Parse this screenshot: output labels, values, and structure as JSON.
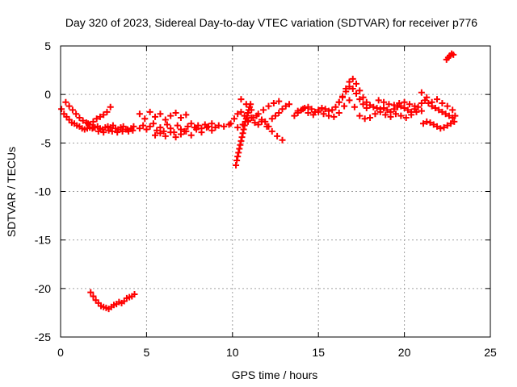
{
  "chart_data": {
    "type": "scatter",
    "title": "Day 320 of 2023, Sidereal Day-to-day VTEC variation (SDTVAR) for receiver p776",
    "xlabel": "GPS time / hours",
    "ylabel": "SDTVAR / TECUs",
    "xlim": [
      0,
      25
    ],
    "ylim": [
      -25,
      5
    ],
    "x_ticks": [
      0,
      5,
      10,
      15,
      20,
      25
    ],
    "y_ticks": [
      5,
      0,
      -5,
      -10,
      -15,
      -20,
      -25
    ],
    "x_tick_labels": [
      "0",
      "5",
      "10",
      "15",
      "20",
      "25"
    ],
    "y_tick_labels": [
      "5",
      "0",
      "-5",
      "-10",
      "-15",
      "-20",
      "-25"
    ],
    "grid": true,
    "marker": "+",
    "series": [
      {
        "name": "SDTVAR",
        "color": "#ff0000",
        "x": [
          0.05,
          0.2,
          0.35,
          0.5,
          0.65,
          0.8,
          0.95,
          1.1,
          1.25,
          1.4,
          1.55,
          1.7,
          1.85,
          2.0,
          2.15,
          2.3,
          2.45,
          2.6,
          2.75,
          2.9,
          3.05,
          3.2,
          3.35,
          3.5,
          3.65,
          3.8,
          3.95,
          4.1,
          4.25,
          0.3,
          0.5,
          0.7,
          0.9,
          1.1,
          1.3,
          1.5,
          1.7,
          1.9,
          2.1,
          2.3,
          2.5,
          2.7,
          2.9,
          1.6,
          1.9,
          2.2,
          2.5,
          2.8,
          3.0,
          3.3,
          3.6,
          3.9,
          4.2,
          4.6,
          4.8,
          5.0,
          5.2,
          5.4,
          5.6,
          5.8,
          6.0,
          6.2,
          6.4,
          6.6,
          6.8,
          7.0,
          7.2,
          7.4,
          7.6,
          7.8,
          8.0,
          8.2,
          8.4,
          8.6,
          8.8,
          9.0,
          9.2,
          9.5,
          9.8,
          4.6,
          4.9,
          5.2,
          5.5,
          5.8,
          6.1,
          6.4,
          6.7,
          7.0,
          7.3,
          5.5,
          5.8,
          6.1,
          6.4,
          6.7,
          7.0,
          7.3,
          7.6,
          7.9,
          8.2,
          8.5,
          8.8,
          9.9,
          10.1,
          10.3,
          10.5,
          10.7,
          10.9,
          11.1,
          11.3,
          11.5,
          11.7,
          11.9,
          12.1,
          12.3,
          12.5,
          12.7,
          12.9,
          13.1,
          13.3,
          10.2,
          10.25,
          10.3,
          10.35,
          10.4,
          10.45,
          10.5,
          10.55,
          10.6,
          10.65,
          10.7,
          10.75,
          10.8,
          10.85,
          10.9,
          10.95,
          11.0,
          11.05,
          10.5,
          10.8,
          11.1,
          11.4,
          11.7,
          12.0,
          12.3,
          12.6,
          12.9,
          10.3,
          10.6,
          10.9,
          11.2,
          11.5,
          11.8,
          12.1,
          12.4,
          12.7,
          13.6,
          13.8,
          14.0,
          14.2,
          14.4,
          14.6,
          14.8,
          15.0,
          15.2,
          15.4,
          15.6,
          15.8,
          16.0,
          16.2,
          16.4,
          16.6,
          16.8,
          17.0,
          17.2,
          17.4,
          17.6,
          17.8,
          18.0,
          18.2,
          18.4,
          18.6,
          18.8,
          19.0,
          19.2,
          19.4,
          19.6,
          19.8,
          20.0,
          20.2,
          20.4,
          20.6,
          20.8,
          21.0,
          21.2,
          21.4,
          21.6,
          21.8,
          22.0,
          22.2,
          22.4,
          22.6,
          22.8,
          22.95,
          13.8,
          14.1,
          14.4,
          14.7,
          15.0,
          15.3,
          15.6,
          15.9,
          16.2,
          16.5,
          16.8,
          17.1,
          17.4,
          17.7,
          18.0,
          18.3,
          18.6,
          18.9,
          19.2,
          19.5,
          19.8,
          20.1,
          20.4,
          20.7,
          21.0,
          16.2,
          16.4,
          16.6,
          16.8,
          17.0,
          17.2,
          17.4,
          17.6,
          17.8,
          18.5,
          18.8,
          19.1,
          19.4,
          19.7,
          20.0,
          20.3,
          20.6,
          21.1,
          21.3,
          21.5,
          21.7,
          21.9,
          22.1,
          22.3,
          22.5,
          22.7,
          22.9,
          21.0,
          21.3,
          21.6,
          21.9,
          22.2,
          22.5,
          22.8,
          22.45,
          22.55,
          22.65,
          22.75,
          22.85,
          1.75,
          1.9,
          2.05,
          2.2,
          2.35,
          2.5,
          2.65,
          2.8,
          2.95,
          3.1,
          3.25,
          3.4,
          3.55,
          3.7,
          3.85,
          4.0,
          4.15,
          4.3
        ],
        "y": [
          -1.5,
          -2.0,
          -2.3,
          -2.6,
          -2.9,
          -3.0,
          -3.2,
          -3.3,
          -3.5,
          -3.6,
          -3.5,
          -3.4,
          -3.5,
          -3.4,
          -3.3,
          -3.5,
          -3.6,
          -3.4,
          -3.3,
          -3.4,
          -3.2,
          -3.5,
          -3.6,
          -3.4,
          -3.3,
          -3.6,
          -3.8,
          -3.5,
          -3.3,
          -0.8,
          -1.2,
          -1.6,
          -2.0,
          -2.4,
          -2.7,
          -2.9,
          -3.1,
          -2.8,
          -2.5,
          -2.3,
          -2.1,
          -1.8,
          -1.3,
          -3.0,
          -3.4,
          -3.8,
          -3.9,
          -3.7,
          -3.8,
          -3.9,
          -3.8,
          -3.6,
          -3.7,
          -3.5,
          -3.2,
          -3.6,
          -3.3,
          -3.0,
          -3.7,
          -3.4,
          -3.8,
          -3.1,
          -3.5,
          -3.9,
          -3.2,
          -3.6,
          -3.8,
          -3.3,
          -3.0,
          -3.4,
          -3.2,
          -3.5,
          -3.1,
          -3.3,
          -3.0,
          -3.4,
          -3.2,
          -3.3,
          -3.1,
          -2.0,
          -2.5,
          -1.8,
          -2.3,
          -2.0,
          -2.6,
          -2.2,
          -1.9,
          -2.4,
          -2.1,
          -4.2,
          -4.0,
          -4.3,
          -3.9,
          -4.4,
          -4.1,
          -3.8,
          -4.2,
          -3.6,
          -3.9,
          -3.4,
          -3.7,
          -3.0,
          -2.5,
          -2.0,
          -1.8,
          -2.2,
          -2.7,
          -2.4,
          -2.9,
          -3.1,
          -2.6,
          -2.8,
          -3.3,
          -2.5,
          -2.2,
          -1.9,
          -1.5,
          -1.2,
          -1.0,
          -7.3,
          -6.8,
          -6.4,
          -6.0,
          -5.6,
          -5.2,
          -4.8,
          -4.4,
          -4.0,
          -3.6,
          -3.2,
          -2.8,
          -2.5,
          -2.2,
          -1.9,
          -1.6,
          -1.3,
          -1.0,
          -0.5,
          -1.0,
          -1.6,
          -2.2,
          -2.8,
          -3.3,
          -3.8,
          -4.3,
          -4.7,
          -3.4,
          -3.1,
          -2.8,
          -2.4,
          -2.0,
          -1.6,
          -1.2,
          -0.9,
          -0.7,
          -2.2,
          -1.9,
          -1.6,
          -1.4,
          -1.3,
          -1.5,
          -1.8,
          -1.6,
          -1.4,
          -1.5,
          -1.7,
          -1.6,
          -1.3,
          -0.8,
          -0.2,
          0.6,
          1.3,
          1.6,
          1.1,
          0.4,
          -0.3,
          -0.8,
          -1.1,
          -1.3,
          -1.4,
          -1.5,
          -1.4,
          -1.6,
          -1.8,
          -1.5,
          -1.3,
          -1.2,
          -1.4,
          -1.6,
          -1.8,
          -1.5,
          -1.3,
          -0.9,
          -0.6,
          -0.9,
          -1.2,
          -1.4,
          -1.6,
          -1.8,
          -2.0,
          -2.2,
          -2.4,
          -2.2,
          -1.7,
          -1.5,
          -1.9,
          -2.1,
          -1.8,
          -2.0,
          -2.2,
          -2.3,
          -1.9,
          -1.2,
          -0.6,
          -1.3,
          -2.2,
          -2.5,
          -2.4,
          -2.0,
          -1.8,
          -2.1,
          -2.3,
          -2.0,
          -2.2,
          -2.4,
          -2.1,
          -1.8,
          -1.7,
          -0.8,
          -0.3,
          0.3,
          0.8,
          0.6,
          0.1,
          -0.5,
          -1.0,
          -1.4,
          -0.6,
          -0.8,
          -1.0,
          -1.1,
          -0.9,
          -0.8,
          -1.0,
          -1.2,
          -3.0,
          -2.8,
          -2.9,
          -3.1,
          -3.3,
          -3.5,
          -3.4,
          -3.2,
          -3.0,
          -2.8,
          0.2,
          -0.3,
          -0.8,
          -0.5,
          -0.9,
          -1.2,
          -1.6,
          3.6,
          3.8,
          4.0,
          4.2,
          4.1,
          -20.4,
          -20.8,
          -21.2,
          -21.5,
          -21.8,
          -21.9,
          -22.0,
          -22.1,
          -21.9,
          -21.7,
          -21.6,
          -21.4,
          -21.5,
          -21.3,
          -21.0,
          -20.9,
          -20.8,
          -20.6
        ]
      }
    ]
  }
}
